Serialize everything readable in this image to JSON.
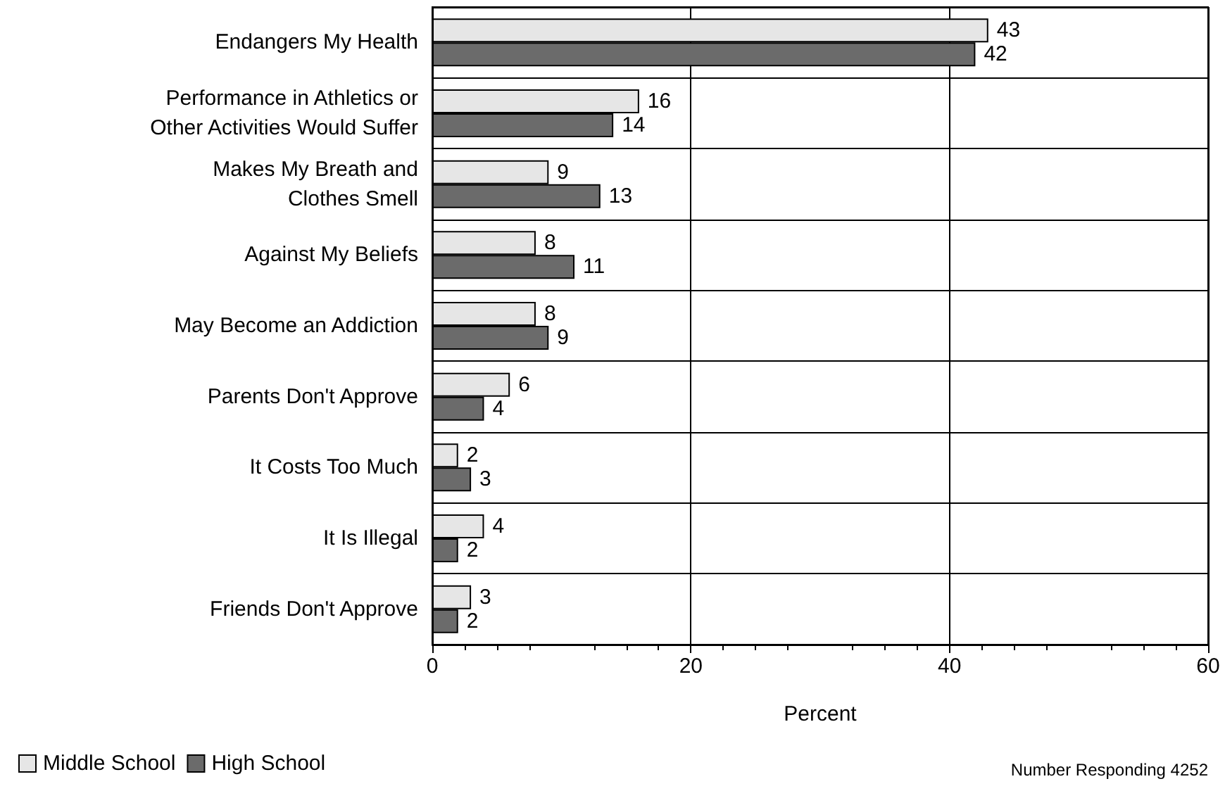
{
  "chart_data": {
    "type": "bar",
    "orientation": "horizontal",
    "xlabel": "Percent",
    "categories": [
      "Endangers My Health",
      "Performance in Athletics or\nOther Activities Would Suffer",
      "Makes My Breath and\nClothes Smell",
      "Against My Beliefs",
      "May Become an Addiction",
      "Parents Don't Approve",
      "It Costs Too Much",
      "It Is Illegal",
      "Friends Don't Approve"
    ],
    "series": [
      {
        "name": "Middle School",
        "color": "#e6e6e6",
        "values": [
          43,
          16,
          9,
          8,
          8,
          6,
          2,
          4,
          3
        ]
      },
      {
        "name": "High School",
        "color": "#6b6b6b",
        "values": [
          42,
          14,
          13,
          11,
          9,
          4,
          3,
          2,
          2
        ]
      }
    ],
    "xlim": [
      0,
      60
    ],
    "xticks": [
      0,
      20,
      40,
      60
    ],
    "grid": true,
    "legend": "bottom left",
    "data_labels": true,
    "annotations": [
      "Number Responding 4252"
    ]
  }
}
